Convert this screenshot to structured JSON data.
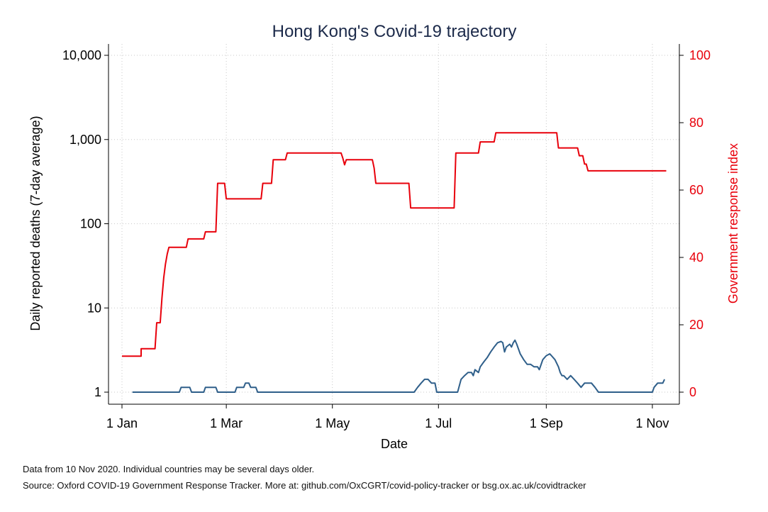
{
  "chart_data": {
    "type": "line",
    "title": "Hong Kong's Covid-19 trajectory",
    "xlabel": "Date",
    "ylabel_left": "Daily reported deaths (7-day average)",
    "ylabel_right": "Government response index",
    "x_ticks": [
      "1 Jan",
      "1 Mar",
      "1 May",
      "1 Jul",
      "1 Sep",
      "1 Nov"
    ],
    "x_tick_days": [
      0,
      60,
      121,
      182,
      244,
      305
    ],
    "x_range_days": [
      0,
      314
    ],
    "y_left": {
      "scale": "log",
      "range": [
        0.8,
        12000
      ],
      "ticks": [
        1,
        10,
        100,
        1000,
        10000
      ],
      "tick_labels": [
        "1",
        "10",
        "100",
        "1,000",
        "10,000"
      ],
      "color": "#000000"
    },
    "y_right": {
      "scale": "linear",
      "range": [
        0,
        100
      ],
      "ticks": [
        0,
        20,
        40,
        60,
        80,
        100
      ],
      "tick_labels": [
        "0",
        "20",
        "40",
        "60",
        "80",
        "100"
      ],
      "color": "#e8000b"
    },
    "grid": true,
    "series": [
      {
        "axis": "left",
        "color": "#2f5f8a",
        "points": [
          [
            6,
            1
          ],
          [
            33,
            1
          ],
          [
            34,
            1.14
          ],
          [
            39,
            1.14
          ],
          [
            40,
            1
          ],
          [
            47,
            1
          ],
          [
            48,
            1.14
          ],
          [
            54,
            1.14
          ],
          [
            55,
            1
          ],
          [
            65,
            1
          ],
          [
            66,
            1.14
          ],
          [
            70,
            1.14
          ],
          [
            71,
            1.28
          ],
          [
            73,
            1.28
          ],
          [
            74,
            1.14
          ],
          [
            77,
            1.14
          ],
          [
            78,
            1
          ],
          [
            168,
            1
          ],
          [
            170,
            1.14
          ],
          [
            172,
            1.28
          ],
          [
            174,
            1.42
          ],
          [
            176,
            1.42
          ],
          [
            178,
            1.28
          ],
          [
            180,
            1.28
          ],
          [
            181,
            1
          ],
          [
            193,
            1
          ],
          [
            195,
            1.42
          ],
          [
            197,
            1.57
          ],
          [
            199,
            1.71
          ],
          [
            201,
            1.71
          ],
          [
            202,
            1.57
          ],
          [
            203,
            1.85
          ],
          [
            205,
            1.71
          ],
          [
            206,
            2.0
          ],
          [
            208,
            2.28
          ],
          [
            210,
            2.57
          ],
          [
            212,
            3.0
          ],
          [
            214,
            3.43
          ],
          [
            216,
            3.86
          ],
          [
            218,
            4.0
          ],
          [
            219,
            3.86
          ],
          [
            220,
            3.0
          ],
          [
            221,
            3.43
          ],
          [
            223,
            3.71
          ],
          [
            224,
            3.43
          ],
          [
            225,
            3.86
          ],
          [
            226,
            4.14
          ],
          [
            227,
            3.71
          ],
          [
            229,
            2.85
          ],
          [
            231,
            2.43
          ],
          [
            233,
            2.14
          ],
          [
            235,
            2.14
          ],
          [
            237,
            2.0
          ],
          [
            239,
            2.0
          ],
          [
            240,
            1.85
          ],
          [
            242,
            2.43
          ],
          [
            244,
            2.71
          ],
          [
            246,
            2.85
          ],
          [
            247,
            2.71
          ],
          [
            249,
            2.43
          ],
          [
            251,
            2.0
          ],
          [
            252,
            1.71
          ],
          [
            253,
            1.57
          ],
          [
            254,
            1.57
          ],
          [
            256,
            1.42
          ],
          [
            258,
            1.57
          ],
          [
            260,
            1.42
          ],
          [
            262,
            1.28
          ],
          [
            264,
            1.14
          ],
          [
            266,
            1.28
          ],
          [
            270,
            1.28
          ],
          [
            272,
            1.14
          ],
          [
            274,
            1
          ],
          [
            305,
            1
          ],
          [
            306,
            1.14
          ],
          [
            308,
            1.28
          ],
          [
            311,
            1.28
          ],
          [
            312,
            1.42
          ]
        ]
      },
      {
        "axis": "right",
        "color": "#e8000b",
        "points": [
          [
            0,
            10.7
          ],
          [
            11,
            10.7
          ],
          [
            11,
            12.9
          ],
          [
            19,
            12.9
          ],
          [
            20,
            20.6
          ],
          [
            22,
            20.6
          ],
          [
            23,
            28
          ],
          [
            24,
            34
          ],
          [
            25,
            38
          ],
          [
            26,
            41
          ],
          [
            27,
            43
          ],
          [
            37,
            43
          ],
          [
            38,
            45.5
          ],
          [
            47,
            45.5
          ],
          [
            48,
            47.6
          ],
          [
            54,
            47.6
          ],
          [
            55,
            62
          ],
          [
            59,
            62
          ],
          [
            60,
            57.4
          ],
          [
            80,
            57.4
          ],
          [
            81,
            62
          ],
          [
            86,
            62
          ],
          [
            87,
            69
          ],
          [
            94,
            69
          ],
          [
            95,
            71
          ],
          [
            126,
            71
          ],
          [
            127,
            69.5
          ],
          [
            128,
            67.5
          ],
          [
            129,
            69
          ],
          [
            144,
            69
          ],
          [
            145,
            66.5
          ],
          [
            146,
            62
          ],
          [
            165,
            62
          ],
          [
            166,
            54.7
          ],
          [
            191,
            54.7
          ],
          [
            192,
            71
          ],
          [
            205,
            71
          ],
          [
            206,
            74.3
          ],
          [
            214,
            74.3
          ],
          [
            215,
            77
          ],
          [
            250,
            77
          ],
          [
            251,
            72.5
          ],
          [
            262,
            72.5
          ],
          [
            263,
            70.2
          ],
          [
            265,
            70.2
          ],
          [
            266,
            67.7
          ],
          [
            267,
            67.7
          ],
          [
            268,
            65.7
          ],
          [
            313,
            65.7
          ]
        ]
      }
    ]
  },
  "notes": {
    "line1": "Data from 10 Nov 2020. Individual countries may be several days older.",
    "line2": "Source: Oxford COVID-19 Government Response Tracker. More at: github.com/OxCGRT/covid-policy-tracker or bsg.ox.ac.uk/covidtracker"
  }
}
